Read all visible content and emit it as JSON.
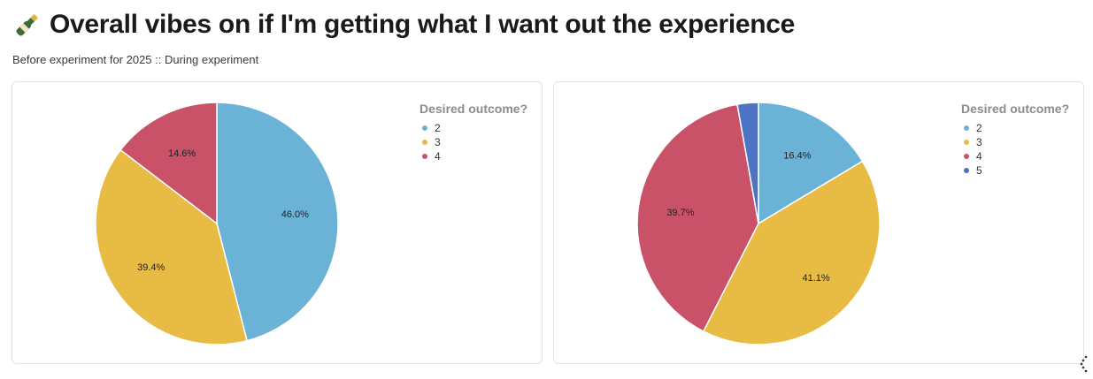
{
  "header": {
    "icon": "champagne-bottle-icon",
    "title": "Overall vibes on if I'm getting what I want out the experience",
    "subtitle": "Before experiment for 2025 :: During experiment"
  },
  "colors": {
    "2": "#6bb3d6",
    "3": "#e8bb45",
    "4": "#c95268",
    "5": "#4e73c4"
  },
  "chart_data": [
    {
      "type": "pie",
      "legend_title": "Desired outcome?",
      "legend_placement": "top-right",
      "categories": [
        "2",
        "3",
        "4"
      ],
      "values": [
        46.0,
        39.4,
        14.6
      ],
      "labels": [
        "46.0%",
        "39.4%",
        "14.6%"
      ]
    },
    {
      "type": "pie",
      "legend_title": "Desired outcome?",
      "legend_placement": "top-right",
      "categories": [
        "2",
        "3",
        "4",
        "5"
      ],
      "values": [
        16.4,
        41.1,
        39.7,
        2.8
      ],
      "labels": [
        "16.4%",
        "41.1%",
        "39.7%",
        ""
      ]
    }
  ]
}
